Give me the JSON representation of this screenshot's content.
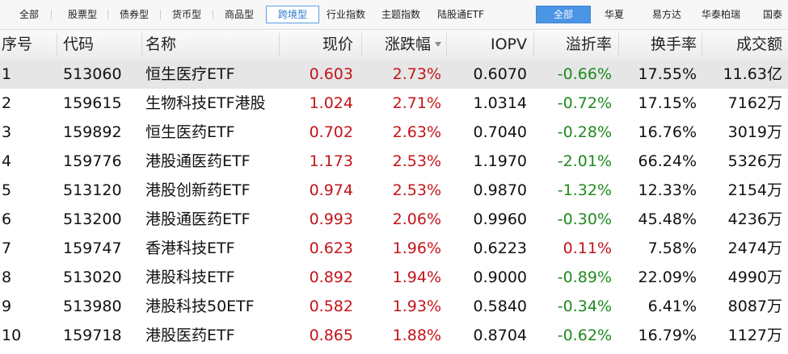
{
  "tabs": [
    "全部",
    "股票型",
    "债券型",
    "货币型",
    "商品型",
    "跨境型",
    "行业指数",
    "主题指数",
    "陆股通ETF"
  ],
  "company_tabs": [
    "全部",
    "华夏",
    "易方达",
    "华泰柏瑞",
    "国泰"
  ],
  "table": {
    "columns": [
      "序号",
      "代码",
      "名称",
      "现价",
      "涨跌幅",
      "IOPV",
      "溢折率",
      "换手率",
      "成交额"
    ],
    "rows": [
      [
        "1",
        "513060",
        "恒生医疗ETF",
        "0.603",
        "2.73%",
        "0.6070",
        "-0.66%",
        "17.55%",
        "11.63亿"
      ],
      [
        "2",
        "159615",
        "生物科技ETF港股",
        "1.024",
        "2.71%",
        "1.0314",
        "-0.72%",
        "17.15%",
        "7162万"
      ],
      [
        "3",
        "159892",
        "恒生医药ETF",
        "0.702",
        "2.63%",
        "0.7040",
        "-0.28%",
        "16.76%",
        "3019万"
      ],
      [
        "4",
        "159776",
        "港股通医药ETF",
        "1.173",
        "2.53%",
        "1.1970",
        "-2.01%",
        "66.24%",
        "5326万"
      ],
      [
        "5",
        "513120",
        "港股创新药ETF",
        "0.974",
        "2.53%",
        "0.9870",
        "-1.32%",
        "12.33%",
        "2154万"
      ],
      [
        "6",
        "513200",
        "港股通医药ETF",
        "0.993",
        "2.06%",
        "0.9960",
        "-0.30%",
        "45.48%",
        "4236万"
      ],
      [
        "7",
        "159747",
        "香港科技ETF",
        "0.623",
        "1.96%",
        "0.6223",
        "0.11%",
        "7.58%",
        "2474万"
      ],
      [
        "8",
        "513020",
        "港股科技ETF",
        "0.892",
        "1.94%",
        "0.9000",
        "-0.89%",
        "22.09%",
        "4990万"
      ],
      [
        "9",
        "513980",
        "港股科技50ETF",
        "0.582",
        "1.93%",
        "0.5840",
        "-0.34%",
        "6.41%",
        "8087万"
      ],
      [
        "10",
        "159718",
        "港股医药ETF",
        "0.865",
        "1.88%",
        "0.8704",
        "-0.62%",
        "16.79%",
        "1127万"
      ]
    ]
  }
}
